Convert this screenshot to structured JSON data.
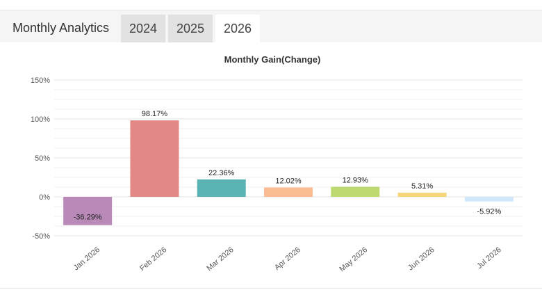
{
  "header": {
    "title": "Monthly Analytics",
    "tabs": [
      {
        "label": "2024",
        "active": false
      },
      {
        "label": "2025",
        "active": false
      },
      {
        "label": "2026",
        "active": true
      }
    ]
  },
  "chart_data": {
    "type": "bar",
    "title": "Monthly Gain(Change)",
    "xlabel": "",
    "ylabel": "",
    "ylim": [
      -50,
      150
    ],
    "yticks": [
      "150%",
      "100%",
      "50%",
      "0%",
      "-50%"
    ],
    "y_tick_values": [
      150,
      100,
      50,
      0,
      -50
    ],
    "grid": true,
    "categories": [
      "Jan 2026",
      "Feb 2026",
      "Mar 2026",
      "Apr 2026",
      "May 2026",
      "Jun 2026",
      "Jul 2026"
    ],
    "values": [
      -36.29,
      98.17,
      22.36,
      12.02,
      12.93,
      5.31,
      -5.92
    ],
    "data_labels": [
      "-36.29%",
      "98.17%",
      "22.36%",
      "12.02%",
      "12.93%",
      "5.31%",
      "-5.92%"
    ],
    "colors": [
      "#b98ab8",
      "#e28885",
      "#5ab4b4",
      "#fbbc93",
      "#bed96f",
      "#f7d57a",
      "#cfe6fb"
    ]
  }
}
